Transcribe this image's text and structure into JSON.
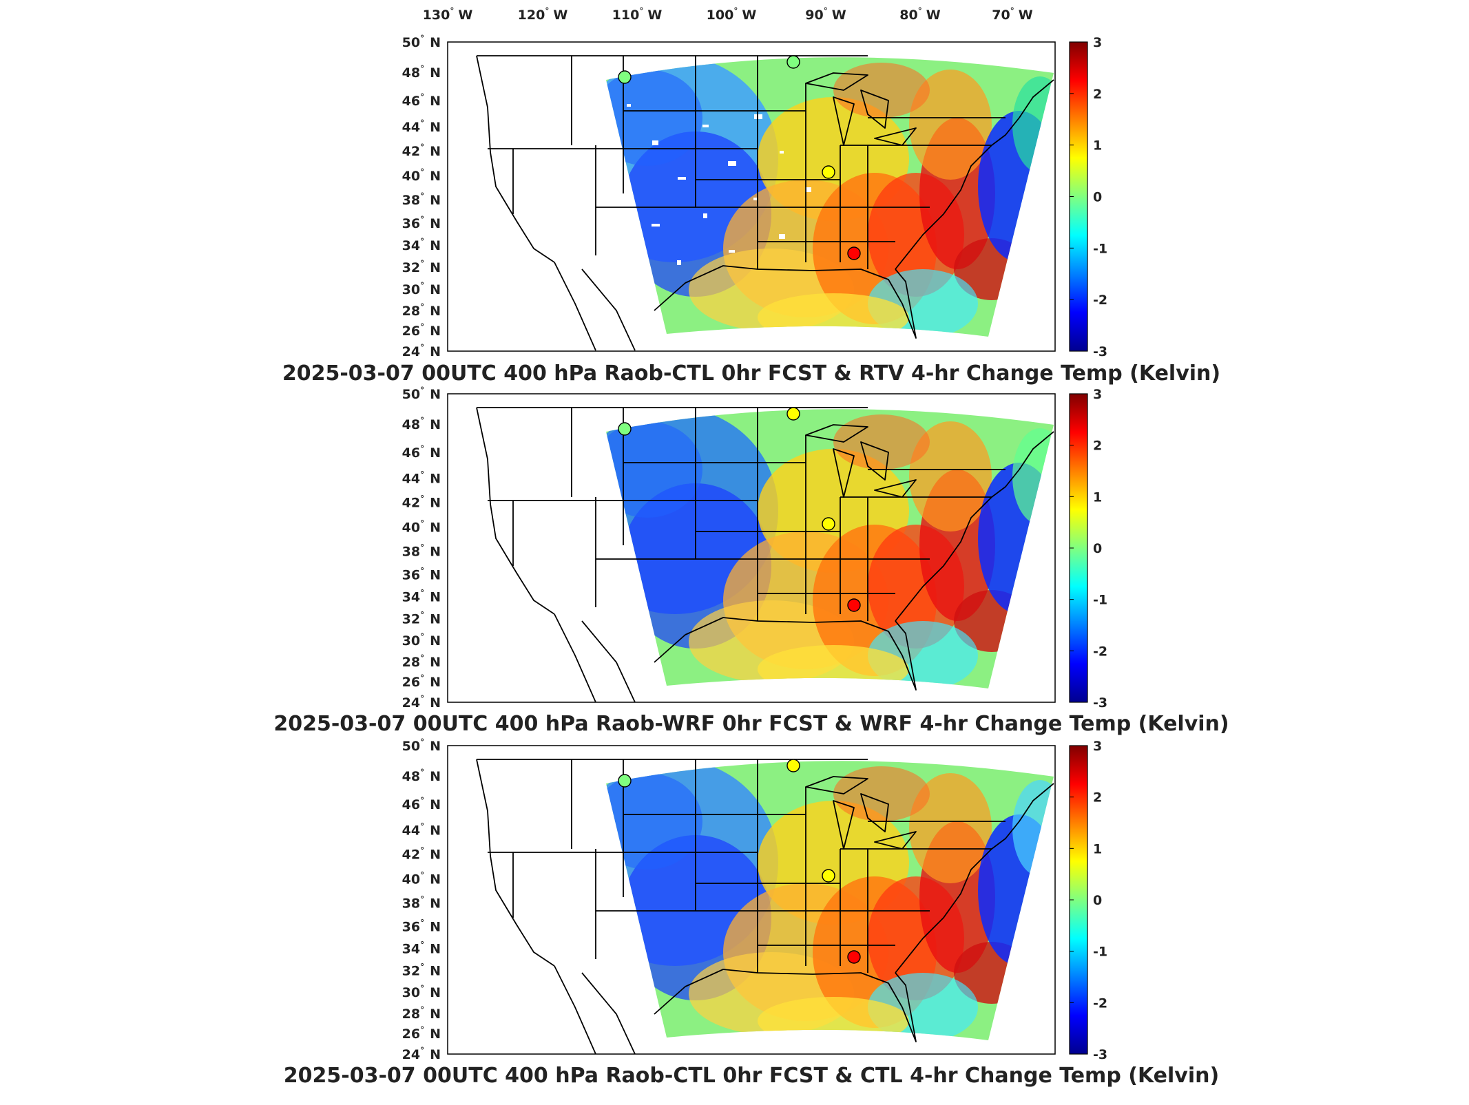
{
  "map": {
    "lon_ticks": [
      {
        "value": -130,
        "label": "130",
        "hemi": "W"
      },
      {
        "value": -120,
        "label": "120",
        "hemi": "W"
      },
      {
        "value": -110,
        "label": "110",
        "hemi": "W"
      },
      {
        "value": -100,
        "label": "100",
        "hemi": "W"
      },
      {
        "value": -90,
        "label": "90",
        "hemi": "W"
      },
      {
        "value": -80,
        "label": "80",
        "hemi": "W"
      },
      {
        "value": -70,
        "label": "70",
        "hemi": "W"
      }
    ],
    "lat_ticks": [
      {
        "value": 50,
        "label": "50",
        "hemi": "N"
      },
      {
        "value": 48,
        "label": "48",
        "hemi": "N"
      },
      {
        "value": 46,
        "label": "46",
        "hemi": "N"
      },
      {
        "value": 44,
        "label": "44",
        "hemi": "N"
      },
      {
        "value": 42,
        "label": "42",
        "hemi": "N"
      },
      {
        "value": 40,
        "label": "40",
        "hemi": "N"
      },
      {
        "value": 38,
        "label": "38",
        "hemi": "N"
      },
      {
        "value": 36,
        "label": "36",
        "hemi": "N"
      },
      {
        "value": 34,
        "label": "34",
        "hemi": "N"
      },
      {
        "value": 32,
        "label": "32",
        "hemi": "N"
      },
      {
        "value": 30,
        "label": "30",
        "hemi": "N"
      },
      {
        "value": 28,
        "label": "28",
        "hemi": "N"
      },
      {
        "value": 26,
        "label": "26",
        "hemi": "N"
      },
      {
        "value": 24,
        "label": "24",
        "hemi": "N"
      }
    ],
    "colorbar": {
      "min": -3,
      "max": 3,
      "ticks": [
        "3",
        "2",
        "1",
        "0",
        "-1",
        "-2",
        "-3"
      ],
      "colormap": [
        "#00008f",
        "#0000ff",
        "#0080ff",
        "#00ffff",
        "#80ff80",
        "#ffff00",
        "#ff8000",
        "#ff0000",
        "#800000"
      ]
    },
    "colors": {
      "border": "#000000",
      "blank": "#ffffff"
    }
  },
  "panels": [
    {
      "title": "2025-03-07 00UTC 400 hPa Raob-CTL 0hr FCST & RTV 4-hr Change Temp (Kelvin)",
      "raob_stations": [
        {
          "name": "west",
          "value": -0.1
        },
        {
          "name": "north",
          "value": 0.3
        },
        {
          "name": "central",
          "value": 0.6
        },
        {
          "name": "south",
          "value": 2.3
        }
      ]
    },
    {
      "title": "2025-03-07 00UTC 400 hPa Raob-WRF 0hr FCST & WRF 4-hr Change Temp (Kelvin)",
      "raob_stations": [
        {
          "name": "west",
          "value": 0.1
        },
        {
          "name": "north",
          "value": 0.4
        },
        {
          "name": "central",
          "value": 0.9
        },
        {
          "name": "south",
          "value": 2.0
        }
      ]
    },
    {
      "title": "2025-03-07 00UTC 400 hPa Raob-CTL 0hr FCST & CTL 4-hr Change Temp (Kelvin)",
      "raob_stations": [
        {
          "name": "west",
          "value": 0.3
        },
        {
          "name": "north",
          "value": 0.4
        },
        {
          "name": "central",
          "value": 0.8
        },
        {
          "name": "south",
          "value": 2.1
        }
      ]
    }
  ]
}
